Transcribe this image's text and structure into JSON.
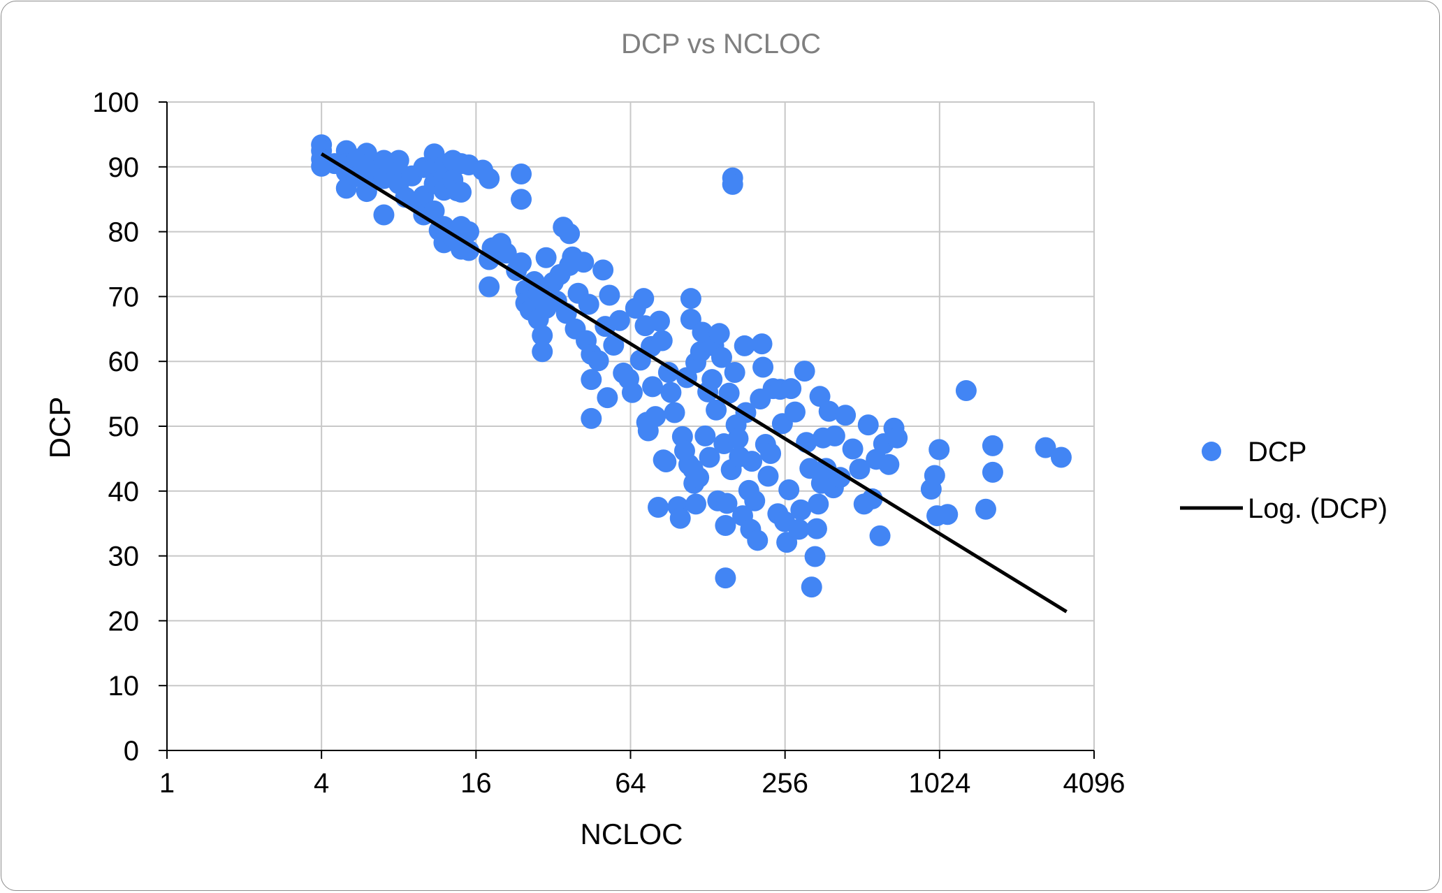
{
  "chart_data": {
    "type": "scatter",
    "title": "DCP vs NCLOC",
    "xlabel": "NCLOC",
    "ylabel": "DCP",
    "x_scale": "log2",
    "xlim": [
      1,
      4096
    ],
    "ylim": [
      0,
      100
    ],
    "x_ticks": [
      "1",
      "4",
      "16",
      "64",
      "256",
      "1024",
      "4096"
    ],
    "y_ticks": [
      "0",
      "10",
      "20",
      "30",
      "40",
      "50",
      "60",
      "70",
      "80",
      "90",
      "100"
    ],
    "grid": true,
    "legend_position": "right",
    "colors": {
      "points": "#4285f4",
      "trend": "#000000"
    },
    "series": [
      {
        "name": "DCP",
        "kind": "scatter",
        "points": [
          [
            4,
            93.4
          ],
          [
            4,
            92.5
          ],
          [
            4,
            91.2
          ],
          [
            4,
            90.1
          ],
          [
            4.5,
            90.5
          ],
          [
            5,
            92.5
          ],
          [
            5,
            90.5
          ],
          [
            5,
            89.2
          ],
          [
            5,
            86.7
          ],
          [
            5.5,
            91.2
          ],
          [
            5.5,
            88.5
          ],
          [
            6,
            92.1
          ],
          [
            6,
            90.3
          ],
          [
            6,
            88.0
          ],
          [
            6,
            86.2
          ],
          [
            6.5,
            89.4
          ],
          [
            7,
            91.0
          ],
          [
            7,
            88.2
          ],
          [
            7,
            82.6
          ],
          [
            7.5,
            90.4
          ],
          [
            8,
            91.0
          ],
          [
            8,
            89.3
          ],
          [
            8,
            87.4
          ],
          [
            8.5,
            85.3
          ],
          [
            9,
            88.6
          ],
          [
            9.5,
            84.4
          ],
          [
            10,
            89.9
          ],
          [
            10,
            85.5
          ],
          [
            10,
            82.6
          ],
          [
            11,
            92.0
          ],
          [
            11,
            89.8
          ],
          [
            11,
            87.4
          ],
          [
            11,
            83.2
          ],
          [
            11.5,
            80.2
          ],
          [
            12,
            90.1
          ],
          [
            12,
            88.2
          ],
          [
            12,
            86.4
          ],
          [
            12,
            80.8
          ],
          [
            12,
            78.3
          ],
          [
            13,
            91.0
          ],
          [
            13,
            88.0
          ],
          [
            13,
            79.2
          ],
          [
            13.5,
            86.3
          ],
          [
            14,
            90.5
          ],
          [
            14,
            86.1
          ],
          [
            14,
            80.8
          ],
          [
            14,
            77.3
          ],
          [
            15,
            90.3
          ],
          [
            15,
            80.0
          ],
          [
            15,
            77.1
          ],
          [
            17,
            89.5
          ],
          [
            18,
            88.2
          ],
          [
            18,
            71.5
          ],
          [
            18,
            75.7
          ],
          [
            18.5,
            77.5
          ],
          [
            20,
            78.2
          ],
          [
            21,
            76.7
          ],
          [
            23,
            74.0
          ],
          [
            24,
            88.9
          ],
          [
            24,
            85.0
          ],
          [
            24,
            75.2
          ],
          [
            25,
            71.0
          ],
          [
            25,
            69.0
          ],
          [
            26,
            67.9
          ],
          [
            27,
            72.3
          ],
          [
            28,
            70.5
          ],
          [
            28,
            66.5
          ],
          [
            29,
            64.0
          ],
          [
            29,
            61.5
          ],
          [
            30,
            76.0
          ],
          [
            30,
            68.2
          ],
          [
            32,
            72.2
          ],
          [
            33,
            69.3
          ],
          [
            34,
            73.4
          ],
          [
            35,
            80.7
          ],
          [
            36,
            67.4
          ],
          [
            37,
            79.7
          ],
          [
            37,
            74.8
          ],
          [
            38,
            76.1
          ],
          [
            39,
            65.0
          ],
          [
            40,
            70.5
          ],
          [
            42,
            75.3
          ],
          [
            43,
            63.2
          ],
          [
            44,
            68.8
          ],
          [
            45,
            61.1
          ],
          [
            45,
            57.2
          ],
          [
            45,
            51.2
          ],
          [
            48,
            60.1
          ],
          [
            50,
            74.1
          ],
          [
            51,
            65.4
          ],
          [
            52,
            54.4
          ],
          [
            53,
            70.2
          ],
          [
            55,
            62.5
          ],
          [
            58,
            66.3
          ],
          [
            60,
            58.2
          ],
          [
            63,
            57.3
          ],
          [
            65,
            55.2
          ],
          [
            67,
            68.2
          ],
          [
            70,
            60.2
          ],
          [
            72,
            69.7
          ],
          [
            73,
            65.5
          ],
          [
            74,
            50.6
          ],
          [
            75,
            49.3
          ],
          [
            77,
            62.3
          ],
          [
            78,
            56.1
          ],
          [
            80,
            51.5
          ],
          [
            82,
            37.5
          ],
          [
            83,
            66.2
          ],
          [
            85,
            63.2
          ],
          [
            86,
            44.8
          ],
          [
            88,
            44.5
          ],
          [
            90,
            58.3
          ],
          [
            92,
            55.2
          ],
          [
            95,
            52.1
          ],
          [
            98,
            37.6
          ],
          [
            100,
            35.8
          ],
          [
            102,
            48.4
          ],
          [
            104,
            46.2
          ],
          [
            106,
            57.5
          ],
          [
            108,
            44.1
          ],
          [
            110,
            66.5
          ],
          [
            110,
            69.7
          ],
          [
            112,
            43.4
          ],
          [
            113,
            41.2
          ],
          [
            115,
            59.8
          ],
          [
            115,
            38.0
          ],
          [
            118,
            42.1
          ],
          [
            120,
            61.5
          ],
          [
            122,
            64.5
          ],
          [
            125,
            48.5
          ],
          [
            128,
            55.3
          ],
          [
            130,
            45.2
          ],
          [
            133,
            57.2
          ],
          [
            135,
            62.4
          ],
          [
            138,
            52.5
          ],
          [
            140,
            38.5
          ],
          [
            142,
            64.3
          ],
          [
            145,
            60.6
          ],
          [
            148,
            47.3
          ],
          [
            150,
            34.7
          ],
          [
            150,
            26.6
          ],
          [
            152,
            38.1
          ],
          [
            155,
            55.1
          ],
          [
            158,
            43.3
          ],
          [
            160,
            88.3
          ],
          [
            160,
            87.3
          ],
          [
            163,
            58.3
          ],
          [
            165,
            50.2
          ],
          [
            168,
            48.1
          ],
          [
            170,
            45.3
          ],
          [
            175,
            36.2
          ],
          [
            178,
            62.4
          ],
          [
            180,
            52.1
          ],
          [
            185,
            40.1
          ],
          [
            188,
            34.1
          ],
          [
            190,
            44.6
          ],
          [
            195,
            38.5
          ],
          [
            200,
            32.4
          ],
          [
            205,
            54.2
          ],
          [
            208,
            62.7
          ],
          [
            210,
            59.1
          ],
          [
            215,
            47.2
          ],
          [
            220,
            42.3
          ],
          [
            225,
            45.8
          ],
          [
            230,
            55.8
          ],
          [
            240,
            36.5
          ],
          [
            245,
            55.7
          ],
          [
            250,
            50.4
          ],
          [
            255,
            35.3
          ],
          [
            260,
            32.1
          ],
          [
            265,
            40.2
          ],
          [
            270,
            55.8
          ],
          [
            280,
            52.2
          ],
          [
            290,
            34.1
          ],
          [
            295,
            37.1
          ],
          [
            305,
            58.5
          ],
          [
            310,
            47.5
          ],
          [
            320,
            43.5
          ],
          [
            325,
            25.2
          ],
          [
            335,
            29.9
          ],
          [
            340,
            34.2
          ],
          [
            345,
            38.0
          ],
          [
            350,
            54.6
          ],
          [
            355,
            41.2
          ],
          [
            360,
            48.2
          ],
          [
            370,
            43.5
          ],
          [
            380,
            52.3
          ],
          [
            395,
            40.5
          ],
          [
            400,
            48.5
          ],
          [
            420,
            42.1
          ],
          [
            440,
            51.7
          ],
          [
            470,
            46.5
          ],
          [
            500,
            43.4
          ],
          [
            520,
            38.0
          ],
          [
            540,
            50.2
          ],
          [
            560,
            38.8
          ],
          [
            580,
            44.9
          ],
          [
            600,
            33.1
          ],
          [
            620,
            47.3
          ],
          [
            650,
            44.1
          ],
          [
            680,
            49.7
          ],
          [
            700,
            48.2
          ],
          [
            950,
            40.3
          ],
          [
            980,
            42.4
          ],
          [
            1000,
            36.2
          ],
          [
            1020,
            46.4
          ],
          [
            1100,
            36.4
          ],
          [
            1300,
            55.5
          ],
          [
            1550,
            37.2
          ],
          [
            1650,
            47.0
          ],
          [
            1650,
            42.9
          ],
          [
            2650,
            46.7
          ],
          [
            3050,
            45.2
          ]
        ]
      },
      {
        "name": "Log. (DCP)",
        "kind": "trendline",
        "x": [
          4,
          3200
        ],
        "y": [
          92.0,
          21.4
        ]
      }
    ]
  }
}
